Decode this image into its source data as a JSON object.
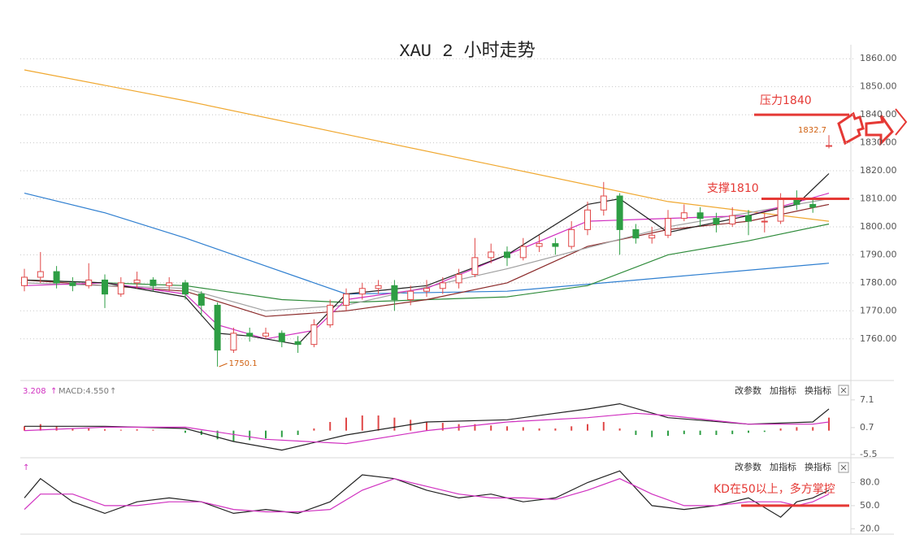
{
  "chart_data": [
    {
      "type": "candlestick",
      "title": "XAU 2 小时走势",
      "ylim": [
        1746,
        1865
      ],
      "yticks": [
        {
          "value": 1860,
          "label": "1860.00"
        },
        {
          "value": 1850,
          "label": "1850.00"
        },
        {
          "value": 1840,
          "label": "1840.00"
        },
        {
          "value": 1830,
          "label": "1830.00"
        },
        {
          "value": 1820,
          "label": "1820.00"
        },
        {
          "value": 1810,
          "label": "1810.00"
        },
        {
          "value": 1800,
          "label": "1800.00"
        },
        {
          "value": 1790,
          "label": "1790.00"
        },
        {
          "value": 1780,
          "label": "1780.00"
        },
        {
          "value": 1770,
          "label": "1770.00"
        },
        {
          "value": 1760,
          "label": "1760.00"
        }
      ],
      "grid": true,
      "up_color": "#e04848",
      "down_color": "#2e9e44",
      "candles": [
        [
          1779,
          1785,
          1777,
          1782
        ],
        [
          1782,
          1791,
          1780,
          1784
        ],
        [
          1784,
          1786,
          1778,
          1780
        ],
        [
          1780,
          1782,
          1777,
          1779
        ],
        [
          1779,
          1787,
          1778,
          1781
        ],
        [
          1781,
          1783,
          1771,
          1776
        ],
        [
          1776,
          1782,
          1775,
          1780
        ],
        [
          1780,
          1784,
          1778,
          1781
        ],
        [
          1781,
          1782,
          1777,
          1779
        ],
        [
          1779,
          1782,
          1777,
          1780
        ],
        [
          1780,
          1781,
          1774,
          1776
        ],
        [
          1776,
          1777,
          1768,
          1772
        ],
        [
          1772,
          1773,
          1750.1,
          1756
        ],
        [
          1756,
          1764,
          1755,
          1762
        ],
        [
          1762,
          1764,
          1759,
          1761
        ],
        [
          1761,
          1764,
          1760,
          1762
        ],
        [
          1762,
          1763,
          1757,
          1759
        ],
        [
          1759,
          1761,
          1755,
          1758
        ],
        [
          1758,
          1767,
          1757,
          1765
        ],
        [
          1765,
          1774,
          1764,
          1772
        ],
        [
          1772,
          1778,
          1770,
          1776
        ],
        [
          1776,
          1780,
          1774,
          1778
        ],
        [
          1778,
          1781,
          1776,
          1779
        ],
        [
          1779,
          1781,
          1770,
          1774
        ],
        [
          1774,
          1779,
          1772,
          1777
        ],
        [
          1777,
          1781,
          1775,
          1778
        ],
        [
          1778,
          1782,
          1776,
          1780
        ],
        [
          1780,
          1785,
          1778,
          1783
        ],
        [
          1783,
          1796,
          1782,
          1789
        ],
        [
          1789,
          1794,
          1787,
          1791
        ],
        [
          1791,
          1793,
          1786,
          1789
        ],
        [
          1789,
          1796,
          1788,
          1793
        ],
        [
          1793,
          1797,
          1791,
          1794
        ],
        [
          1794,
          1796,
          1790,
          1793
        ],
        [
          1793,
          1802,
          1792,
          1799
        ],
        [
          1799,
          1809,
          1797,
          1806
        ],
        [
          1806,
          1816,
          1804,
          1811
        ],
        [
          1811,
          1812,
          1790,
          1799
        ],
        [
          1799,
          1801,
          1794,
          1796
        ],
        [
          1796,
          1800,
          1794,
          1797
        ],
        [
          1797,
          1806,
          1796,
          1803
        ],
        [
          1803,
          1808,
          1802,
          1805
        ],
        [
          1805,
          1807,
          1800,
          1803
        ],
        [
          1803,
          1805,
          1798,
          1801
        ],
        [
          1801,
          1807,
          1800,
          1804
        ],
        [
          1804,
          1806,
          1797,
          1802
        ],
        [
          1802,
          1805,
          1798,
          1802
        ],
        [
          1802,
          1812,
          1801,
          1810
        ],
        [
          1810,
          1813,
          1806,
          1808
        ],
        [
          1808,
          1810,
          1805,
          1807
        ],
        [
          1829,
          1832.7,
          1828,
          1829
        ]
      ],
      "lines": [
        {
          "color": "#f0a830",
          "x": [
            0,
            10,
            20,
            30,
            40,
            50
          ],
          "values": [
            1856,
            1845,
            1833,
            1821,
            1809,
            1802
          ]
        },
        {
          "color": "#2f7fd0",
          "x": [
            0,
            5,
            10,
            15,
            20,
            30,
            40,
            50
          ],
          "values": [
            1812,
            1805,
            1796,
            1786,
            1776,
            1777,
            1782,
            1787
          ]
        },
        {
          "color": "#2e8b3a",
          "x": [
            0,
            10,
            16,
            20,
            30,
            35,
            40,
            45,
            50
          ],
          "values": [
            1781,
            1779,
            1774,
            1773,
            1775,
            1779,
            1790,
            1795,
            1801
          ]
        },
        {
          "color": "#8b2a2a",
          "x": [
            0,
            5,
            10,
            15,
            20,
            25,
            30,
            35,
            40,
            45,
            50
          ],
          "values": [
            1781,
            1779,
            1777,
            1768,
            1770,
            1774,
            1780,
            1793,
            1799,
            1802,
            1808
          ]
        },
        {
          "color": "#a0a0a0",
          "x": [
            0,
            10,
            15,
            20,
            30,
            40,
            50
          ],
          "values": [
            1780,
            1778,
            1770,
            1772,
            1785,
            1800,
            1810
          ]
        },
        {
          "color": "#d030c0",
          "x": [
            0,
            5,
            10,
            12,
            15,
            18,
            20,
            25,
            30,
            35,
            40,
            45,
            50
          ],
          "values": [
            1779,
            1780,
            1776,
            1765,
            1760,
            1763,
            1774,
            1778,
            1790,
            1802,
            1803,
            1804,
            1812
          ]
        },
        {
          "color": "#222222",
          "x": [
            0,
            5,
            10,
            12,
            14,
            17,
            20,
            25,
            30,
            35,
            37,
            40,
            45,
            48,
            50
          ],
          "values": [
            1781,
            1780,
            1775,
            1762,
            1761,
            1758,
            1776,
            1779,
            1790,
            1808,
            1810,
            1798,
            1804,
            1808,
            1819
          ]
        }
      ],
      "levels": [
        {
          "value": 1840,
          "label": "压力1840"
        },
        {
          "value": 1810,
          "label": "支撑1810"
        }
      ],
      "level_color": "#e53935",
      "notes": [
        1832.7,
        1750.1
      ]
    },
    {
      "type": "macd",
      "header": [
        "3.208",
        "↑",
        "MACD:4.550",
        "↑"
      ],
      "ylim": [
        -5.7,
        11.2
      ],
      "yticks": [
        7.1,
        0.7,
        -5.5
      ],
      "up_color": "#e04848",
      "down_color": "#2e9e44",
      "histogram": [
        1,
        1.5,
        1,
        0.5,
        0.5,
        0.3,
        0.2,
        0.3,
        0.2,
        0,
        -0.5,
        -1,
        -2,
        -2.5,
        -2.2,
        -1.8,
        -1.5,
        -1,
        0.5,
        2,
        3,
        3.5,
        3.5,
        3,
        2.5,
        2,
        1.8,
        1.5,
        1.5,
        1.2,
        1,
        0.8,
        0.5,
        0.5,
        1,
        1.5,
        2,
        0.5,
        -1,
        -1.5,
        -1.2,
        -0.8,
        -1,
        -1,
        -0.8,
        -0.5,
        -0.3,
        0.5,
        0.8,
        0.8,
        3
      ],
      "lines": [
        {
          "color": "#222222",
          "x": [
            0,
            5,
            10,
            13,
            16,
            20,
            25,
            30,
            35,
            37,
            40,
            45,
            49,
            50
          ],
          "values": [
            1,
            1,
            0.5,
            -2.5,
            -4.5,
            -1,
            2,
            2.5,
            5,
            6.2,
            3,
            1.5,
            2,
            5
          ]
        },
        {
          "color": "#d030c0",
          "x": [
            0,
            5,
            10,
            15,
            20,
            25,
            30,
            35,
            38,
            40,
            45,
            49,
            50
          ],
          "values": [
            0,
            0.8,
            0.8,
            -2,
            -3,
            0,
            2,
            3,
            4,
            3.5,
            1.5,
            1.5,
            2
          ]
        }
      ]
    },
    {
      "type": "line",
      "header": [
        "↑"
      ],
      "ylim": [
        13,
        110
      ],
      "yticks": [
        {
          "value": 80,
          "label": "80.0"
        },
        {
          "value": 50,
          "label": "50.0"
        },
        {
          "value": 20,
          "label": "20.0"
        }
      ],
      "lines": [
        {
          "color": "#222222",
          "x": [
            0,
            1,
            3,
            5,
            7,
            9,
            11,
            13,
            15,
            17,
            19,
            21,
            23,
            25,
            27,
            29,
            31,
            33,
            35,
            37,
            39,
            41,
            43,
            45,
            47,
            48,
            49,
            50
          ],
          "values": [
            60,
            85,
            55,
            40,
            55,
            60,
            55,
            40,
            45,
            40,
            55,
            90,
            85,
            70,
            60,
            65,
            55,
            60,
            80,
            95,
            50,
            45,
            50,
            60,
            35,
            55,
            60,
            70
          ]
        },
        {
          "color": "#d030c0",
          "x": [
            0,
            1,
            3,
            5,
            7,
            9,
            11,
            13,
            15,
            17,
            19,
            21,
            23,
            25,
            27,
            29,
            31,
            33,
            35,
            37,
            39,
            41,
            43,
            45,
            47,
            48,
            49,
            50
          ],
          "values": [
            45,
            65,
            65,
            50,
            50,
            55,
            55,
            45,
            42,
            42,
            45,
            70,
            85,
            75,
            65,
            60,
            60,
            58,
            70,
            85,
            65,
            50,
            50,
            55,
            55,
            50,
            55,
            65
          ]
        }
      ],
      "levels": [
        {
          "value": 50,
          "label": "KD在50以上，多方掌控"
        }
      ],
      "level_color": "#e53935"
    }
  ],
  "toolbar": {
    "buttons": [
      "改参数",
      "加指标",
      "换指标"
    ]
  }
}
